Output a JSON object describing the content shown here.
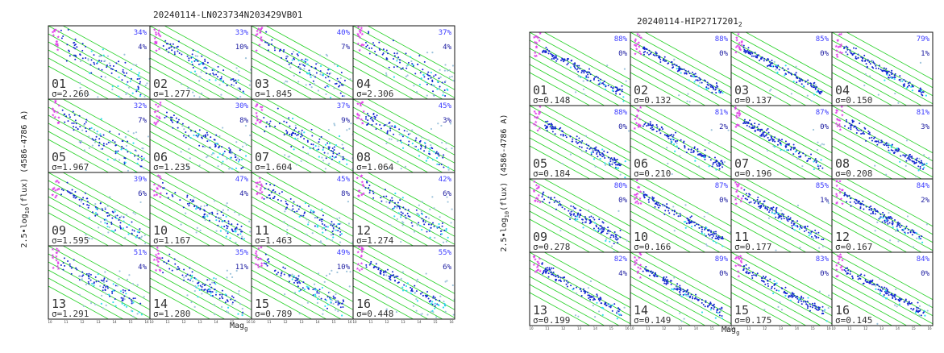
{
  "colors": {
    "band": "#22d022",
    "bright": "#1428d0",
    "faint": "#9ec4dc",
    "mid": "#33e0ee",
    "magenta": "#e040e8",
    "pct_top": "#3a3aff",
    "pct_mid": "#48e8ff",
    "pct_bot": "#1a1aa0"
  },
  "chart_data": [
    {
      "type": "scatter",
      "title": "20240114-LN023734N203429VB01",
      "title_sub": "",
      "xlabel": "Mag",
      "xlabel_sub": "g",
      "ylabel": "2.5•log",
      "ylabel_sub": "10",
      "ylabel_rest": "(flux) (4586-4786 A)",
      "grid": {
        "rows": 4,
        "cols": 4
      },
      "xlim": [
        10,
        16
      ],
      "x_ticks": [
        "10",
        "11",
        "12",
        "13",
        "14",
        "15",
        "16"
      ],
      "panels": [
        {
          "id": "01",
          "sigma": "σ=2.260",
          "pct": [
            "34%",
            "",
            "4%"
          ],
          "scatter": 2.26
        },
        {
          "id": "02",
          "sigma": "σ=1.277",
          "pct": [
            "33%",
            "",
            "10%"
          ],
          "scatter": 1.277
        },
        {
          "id": "03",
          "sigma": "σ=1.845",
          "pct": [
            "40%",
            "",
            "7%"
          ],
          "scatter": 1.845
        },
        {
          "id": "04",
          "sigma": "σ=2.306",
          "pct": [
            "37%",
            "",
            "4%"
          ],
          "scatter": 2.306
        },
        {
          "id": "05",
          "sigma": "σ=1.967",
          "pct": [
            "32%",
            "",
            "7%"
          ],
          "scatter": 1.967
        },
        {
          "id": "06",
          "sigma": "σ=1.235",
          "pct": [
            "30%",
            "",
            "8%"
          ],
          "scatter": 1.235
        },
        {
          "id": "07",
          "sigma": "σ=1.604",
          "pct": [
            "37%",
            "",
            "9%"
          ],
          "scatter": 1.604
        },
        {
          "id": "08",
          "sigma": "σ=1.064",
          "pct": [
            "45%",
            "",
            "3%"
          ],
          "scatter": 1.064
        },
        {
          "id": "09",
          "sigma": "σ=1.595",
          "pct": [
            "39%",
            "",
            "6%"
          ],
          "scatter": 1.595
        },
        {
          "id": "10",
          "sigma": "σ=1.167",
          "pct": [
            "47%",
            "",
            "4%"
          ],
          "scatter": 1.167
        },
        {
          "id": "11",
          "sigma": "σ=1.463",
          "pct": [
            "45%",
            "",
            "8%"
          ],
          "scatter": 1.463
        },
        {
          "id": "12",
          "sigma": "σ=1.274",
          "pct": [
            "42%",
            "",
            "6%"
          ],
          "scatter": 1.274
        },
        {
          "id": "13",
          "sigma": "σ=1.291",
          "pct": [
            "51%",
            "",
            "4%"
          ],
          "scatter": 1.291
        },
        {
          "id": "14",
          "sigma": "σ=1.280",
          "pct": [
            "35%",
            "",
            "11%"
          ],
          "scatter": 1.28
        },
        {
          "id": "15",
          "sigma": "σ=0.789",
          "pct": [
            "49%",
            "",
            "10%"
          ],
          "scatter": 0.789
        },
        {
          "id": "16",
          "sigma": "σ=0.448",
          "pct": [
            "55%",
            "",
            "6%"
          ],
          "scatter": 0.448
        }
      ]
    },
    {
      "type": "scatter",
      "title": "20240114-HIP2717201",
      "title_sub": "2",
      "xlabel": "Mag",
      "xlabel_sub": "g",
      "ylabel": "2.5•log",
      "ylabel_sub": "10",
      "ylabel_rest": "(flux) (4586-4786 A)",
      "grid": {
        "rows": 4,
        "cols": 4
      },
      "xlim": [
        10,
        16
      ],
      "x_ticks": [
        "10",
        "11",
        "12",
        "13",
        "14",
        "15",
        "16"
      ],
      "panels": [
        {
          "id": "01",
          "sigma": "σ=0.148",
          "pct": [
            "88%",
            "",
            "0%"
          ],
          "scatter": 0.148
        },
        {
          "id": "02",
          "sigma": "σ=0.132",
          "pct": [
            "88%",
            "",
            "0%"
          ],
          "scatter": 0.132
        },
        {
          "id": "03",
          "sigma": "σ=0.137",
          "pct": [
            "85%",
            "",
            "0%"
          ],
          "scatter": 0.137
        },
        {
          "id": "04",
          "sigma": "σ=0.150",
          "pct": [
            "79%",
            "",
            "1%"
          ],
          "scatter": 0.15
        },
        {
          "id": "05",
          "sigma": "σ=0.184",
          "pct": [
            "88%",
            "",
            "0%"
          ],
          "scatter": 0.184
        },
        {
          "id": "06",
          "sigma": "σ=0.210",
          "pct": [
            "81%",
            "",
            "2%"
          ],
          "scatter": 0.21
        },
        {
          "id": "07",
          "sigma": "σ=0.196",
          "pct": [
            "87%",
            "",
            "0%"
          ],
          "scatter": 0.196
        },
        {
          "id": "08",
          "sigma": "σ=0.208",
          "pct": [
            "81%",
            "",
            "3%"
          ],
          "scatter": 0.208
        },
        {
          "id": "09",
          "sigma": "σ=0.278",
          "pct": [
            "80%",
            "",
            "0%"
          ],
          "scatter": 0.278
        },
        {
          "id": "10",
          "sigma": "σ=0.166",
          "pct": [
            "87%",
            "",
            "0%"
          ],
          "scatter": 0.166
        },
        {
          "id": "11",
          "sigma": "σ=0.177",
          "pct": [
            "85%",
            "",
            "1%"
          ],
          "scatter": 0.177
        },
        {
          "id": "12",
          "sigma": "σ=0.167",
          "pct": [
            "84%",
            "",
            "2%"
          ],
          "scatter": 0.167
        },
        {
          "id": "13",
          "sigma": "σ=0.199",
          "pct": [
            "82%",
            "",
            "4%"
          ],
          "scatter": 0.199
        },
        {
          "id": "14",
          "sigma": "σ=0.149",
          "pct": [
            "89%",
            "",
            "0%"
          ],
          "scatter": 0.149
        },
        {
          "id": "15",
          "sigma": "σ=0.175",
          "pct": [
            "83%",
            "",
            "0%"
          ],
          "scatter": 0.175
        },
        {
          "id": "16",
          "sigma": "σ=0.145",
          "pct": [
            "84%",
            "",
            "0%"
          ],
          "scatter": 0.145
        }
      ]
    }
  ]
}
